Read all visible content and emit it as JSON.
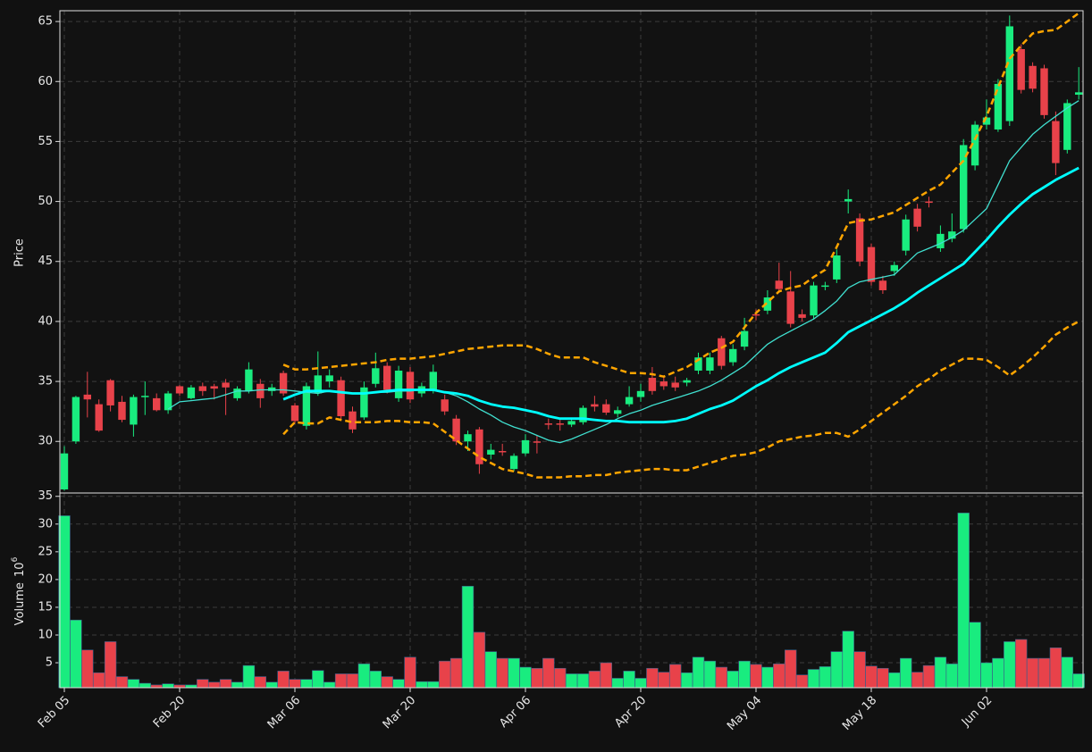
{
  "chart_data": [
    {
      "type": "candlestick",
      "ylabel": "Price",
      "up_color": "#19ec7f",
      "down_color": "#e8424a",
      "ylim": [
        25.7,
        65.9
      ],
      "yticks": [
        30,
        35,
        40,
        45,
        50,
        55,
        60,
        65
      ],
      "grid": true,
      "open": [
        26.0,
        30.0,
        33.9,
        33.1,
        35.1,
        33.3,
        31.4,
        33.7,
        33.6,
        32.6,
        34.6,
        33.6,
        34.6,
        34.6,
        34.9,
        33.6,
        34.2,
        34.8,
        34.2,
        35.7,
        33.0,
        31.3,
        34.0,
        35.0,
        35.1,
        32.5,
        32.0,
        34.8,
        36.3,
        33.6,
        35.8,
        34.0,
        34.2,
        33.5,
        31.9,
        30.0,
        31.0,
        28.9,
        29.2,
        27.7,
        29.0,
        30.0,
        31.5,
        31.5,
        31.4,
        31.6,
        33.1,
        33.1,
        32.3,
        33.1,
        33.7,
        35.3,
        35.0,
        34.9,
        34.9,
        35.9,
        35.9,
        38.6,
        36.6,
        37.9,
        40.6,
        40.9,
        43.4,
        42.5,
        40.6,
        40.5,
        42.9,
        43.5,
        50.0,
        48.6,
        46.2,
        43.4,
        44.2,
        45.9,
        49.4,
        50.0,
        46.1,
        46.9,
        47.7,
        53.0,
        56.4,
        56.0,
        56.7,
        62.7,
        61.3,
        61.1,
        56.7,
        54.3,
        58.9
      ],
      "high": [
        29.6,
        33.8,
        35.8,
        33.5,
        35.2,
        33.8,
        33.9,
        35.0,
        34.0,
        34.2,
        34.7,
        34.7,
        34.9,
        34.8,
        35.2,
        34.6,
        36.6,
        35.2,
        34.8,
        35.9,
        33.2,
        34.9,
        37.5,
        36.0,
        35.4,
        32.9,
        35.0,
        37.4,
        36.6,
        36.3,
        36.2,
        34.9,
        36.4,
        33.9,
        32.2,
        30.9,
        31.2,
        29.8,
        29.8,
        29.0,
        30.6,
        30.5,
        31.9,
        31.8,
        31.9,
        33.0,
        33.8,
        33.5,
        32.9,
        34.6,
        34.8,
        36.2,
        35.4,
        35.4,
        35.3,
        37.4,
        37.4,
        38.8,
        38.1,
        40.3,
        41.0,
        42.6,
        44.9,
        44.2,
        41.0,
        43.3,
        43.3,
        46.0,
        51.0,
        49.0,
        46.5,
        43.8,
        45.0,
        48.9,
        49.8,
        50.4,
        48.0,
        49.0,
        55.2,
        56.7,
        58.5,
        60.2,
        65.5,
        63.1,
        61.6,
        61.4,
        57.5,
        58.5,
        61.2
      ],
      "low": [
        25.9,
        29.8,
        32.0,
        30.8,
        32.5,
        31.6,
        30.4,
        32.2,
        32.5,
        32.3,
        33.8,
        33.5,
        33.8,
        33.5,
        32.2,
        33.4,
        34.0,
        32.8,
        33.8,
        33.8,
        31.5,
        31.0,
        33.8,
        34.5,
        31.8,
        30.7,
        31.8,
        34.5,
        34.0,
        33.3,
        33.2,
        33.7,
        34.0,
        32.2,
        29.7,
        29.2,
        27.3,
        28.5,
        28.8,
        27.5,
        28.8,
        29.0,
        31.0,
        30.9,
        31.2,
        31.4,
        32.5,
        32.2,
        32.0,
        32.9,
        33.3,
        33.9,
        34.3,
        34.2,
        34.6,
        35.6,
        35.6,
        36.0,
        36.3,
        37.6,
        40.1,
        40.6,
        42.4,
        39.5,
        40.0,
        40.2,
        42.6,
        43.2,
        49.0,
        44.6,
        43.0,
        42.3,
        43.8,
        45.5,
        47.5,
        49.5,
        45.8,
        46.6,
        47.4,
        52.6,
        56.0,
        55.8,
        56.3,
        59.0,
        59.1,
        56.9,
        52.2,
        54.0,
        58.5
      ],
      "close": [
        29.0,
        33.7,
        33.5,
        30.9,
        33.0,
        31.8,
        33.7,
        33.8,
        32.6,
        34.0,
        34.0,
        34.5,
        34.2,
        34.4,
        34.5,
        34.4,
        36.0,
        33.6,
        34.5,
        34.0,
        31.7,
        34.6,
        35.5,
        35.5,
        32.1,
        31.0,
        34.5,
        36.1,
        34.3,
        35.9,
        33.5,
        34.6,
        35.8,
        32.5,
        30.0,
        30.6,
        28.1,
        29.3,
        29.1,
        28.8,
        30.1,
        29.9,
        31.4,
        31.4,
        31.7,
        32.8,
        32.9,
        32.4,
        32.6,
        33.7,
        34.2,
        34.2,
        34.6,
        34.5,
        35.1,
        37.0,
        37.0,
        36.3,
        37.7,
        39.2,
        40.5,
        42.0,
        42.7,
        39.8,
        40.3,
        43.0,
        43.0,
        45.5,
        50.2,
        45.0,
        43.3,
        42.6,
        44.7,
        48.5,
        47.9,
        49.9,
        47.3,
        47.5,
        54.7,
        56.4,
        57.0,
        59.8,
        64.6,
        59.3,
        59.4,
        57.2,
        53.2,
        58.2,
        59.1
      ],
      "lines": [
        {
          "color": "#40e0d0",
          "width": 1.3,
          "dashed": false,
          "values": [
            null,
            null,
            null,
            null,
            null,
            null,
            null,
            null,
            null,
            32.7,
            33.3,
            33.4,
            33.5,
            33.6,
            33.9,
            34.2,
            34.2,
            34.3,
            34.3,
            34.3,
            34.2,
            34.1,
            34.0,
            34.2,
            34.1,
            34.0,
            34.0,
            34.1,
            34.1,
            34.2,
            34.2,
            34.3,
            34.3,
            34.1,
            33.8,
            33.3,
            32.7,
            32.2,
            31.6,
            31.2,
            30.9,
            30.5,
            30.1,
            29.9,
            30.2,
            30.6,
            31.0,
            31.4,
            31.9,
            32.3,
            32.6,
            33.0,
            33.3,
            33.6,
            33.9,
            34.2,
            34.6,
            35.1,
            35.7,
            36.3,
            37.2,
            38.1,
            38.7,
            39.2,
            39.7,
            40.2,
            40.9,
            41.7,
            42.8,
            43.3,
            43.5,
            43.7,
            43.9,
            44.8,
            45.7,
            46.1,
            46.5,
            47.0,
            47.6,
            48.5,
            49.4,
            51.4,
            53.4,
            54.5,
            55.6,
            56.4,
            57.1,
            57.8,
            58.4
          ]
        },
        {
          "color": "#00ffff",
          "width": 2.8,
          "dashed": false,
          "values": [
            null,
            null,
            null,
            null,
            null,
            null,
            null,
            null,
            null,
            null,
            null,
            null,
            null,
            null,
            null,
            null,
            null,
            null,
            null,
            33.5,
            33.9,
            34.2,
            34.2,
            34.2,
            34.1,
            34.0,
            34.0,
            34.1,
            34.2,
            34.3,
            34.3,
            34.3,
            34.3,
            34.1,
            34.0,
            33.8,
            33.4,
            33.1,
            32.9,
            32.8,
            32.6,
            32.4,
            32.1,
            31.9,
            31.9,
            31.9,
            31.8,
            31.7,
            31.7,
            31.6,
            31.6,
            31.6,
            31.6,
            31.7,
            31.9,
            32.3,
            32.7,
            33.0,
            33.4,
            34.0,
            34.6,
            35.1,
            35.7,
            36.2,
            36.6,
            37.0,
            37.4,
            38.2,
            39.1,
            39.6,
            40.1,
            40.6,
            41.1,
            41.7,
            42.4,
            43.0,
            43.6,
            44.2,
            44.8,
            45.8,
            46.8,
            47.9,
            48.9,
            49.8,
            50.6,
            51.2,
            51.8,
            52.3,
            52.8
          ]
        },
        {
          "color": "#ffa500",
          "width": 2.5,
          "dashed": true,
          "values": [
            null,
            null,
            null,
            null,
            null,
            null,
            null,
            null,
            null,
            null,
            null,
            null,
            null,
            null,
            null,
            null,
            null,
            null,
            null,
            36.4,
            36.0,
            36.0,
            36.1,
            36.2,
            36.3,
            36.4,
            36.5,
            36.6,
            36.8,
            36.9,
            36.9,
            37.0,
            37.1,
            37.3,
            37.5,
            37.7,
            37.8,
            37.9,
            38.0,
            38.0,
            38.0,
            37.7,
            37.3,
            37.0,
            37.0,
            37.0,
            36.6,
            36.3,
            36.0,
            35.7,
            35.7,
            35.6,
            35.4,
            35.8,
            36.2,
            36.8,
            37.4,
            37.8,
            38.3,
            39.5,
            40.7,
            41.6,
            42.5,
            42.8,
            43.0,
            43.7,
            44.3,
            46.2,
            48.2,
            48.4,
            48.5,
            48.8,
            49.1,
            49.7,
            50.3,
            50.9,
            51.4,
            52.4,
            53.4,
            55.2,
            57.1,
            59.5,
            61.9,
            63.0,
            64.0,
            64.2,
            64.3,
            65.0,
            65.7
          ]
        },
        {
          "color": "#ffa500",
          "width": 2.5,
          "dashed": true,
          "values": [
            null,
            null,
            null,
            null,
            null,
            null,
            null,
            null,
            null,
            null,
            null,
            null,
            null,
            null,
            null,
            null,
            null,
            null,
            null,
            30.6,
            31.6,
            31.5,
            31.5,
            32.0,
            31.8,
            31.6,
            31.6,
            31.6,
            31.7,
            31.7,
            31.6,
            31.6,
            31.5,
            30.8,
            30.1,
            29.4,
            28.7,
            28.2,
            27.7,
            27.5,
            27.3,
            27.0,
            27.0,
            27.0,
            27.1,
            27.1,
            27.2,
            27.2,
            27.4,
            27.5,
            27.6,
            27.7,
            27.7,
            27.6,
            27.6,
            27.9,
            28.2,
            28.5,
            28.8,
            28.9,
            29.1,
            29.5,
            30.0,
            30.2,
            30.4,
            30.5,
            30.7,
            30.7,
            30.4,
            31.0,
            31.7,
            32.4,
            33.1,
            33.8,
            34.6,
            35.2,
            35.9,
            36.4,
            36.9,
            36.9,
            36.8,
            36.2,
            35.5,
            36.2,
            37.0,
            37.9,
            38.9,
            39.5,
            40.0
          ]
        }
      ]
    },
    {
      "type": "bar",
      "ylabel": "Volume",
      "ylabel_base": "10",
      "ylabel_exponent": "6",
      "ylim": [
        0.5,
        35.6
      ],
      "yticks": [
        5,
        10,
        15,
        20,
        25,
        30,
        35
      ],
      "grid": true,
      "categories": [
        "Feb 05",
        null,
        null,
        null,
        null,
        null,
        null,
        null,
        null,
        null,
        "Feb 20",
        null,
        null,
        null,
        null,
        null,
        null,
        null,
        null,
        null,
        "Mar 06",
        null,
        null,
        null,
        null,
        null,
        null,
        null,
        null,
        null,
        "Mar 20",
        null,
        null,
        null,
        null,
        null,
        null,
        null,
        null,
        null,
        "Apr 06",
        null,
        null,
        null,
        null,
        null,
        null,
        null,
        null,
        null,
        "Apr 20",
        null,
        null,
        null,
        null,
        null,
        null,
        null,
        null,
        null,
        "May 04",
        null,
        null,
        null,
        null,
        null,
        null,
        null,
        null,
        null,
        "May 18",
        null,
        null,
        null,
        null,
        null,
        null,
        null,
        null,
        null,
        "Jun 02",
        null,
        null,
        null,
        null,
        null,
        null,
        null,
        null
      ],
      "values": [
        31.5,
        12.7,
        7.3,
        3.2,
        8.8,
        2.5,
        2.0,
        1.3,
        1.0,
        1.2,
        1.0,
        1.0,
        2.0,
        1.5,
        2.0,
        1.5,
        4.5,
        2.5,
        1.5,
        3.5,
        2.0,
        2.0,
        3.6,
        1.5,
        3.0,
        3.0,
        4.8,
        3.5,
        2.5,
        2.0,
        6.0,
        1.6,
        1.6,
        5.3,
        5.8,
        18.8,
        10.5,
        7.0,
        5.8,
        5.8,
        4.2,
        4.0,
        5.8,
        4.0,
        3.0,
        3.0,
        3.5,
        5.0,
        2.2,
        3.5,
        2.2,
        4.0,
        3.3,
        4.7,
        3.2,
        6.0,
        5.3,
        4.2,
        3.5,
        5.3,
        4.7,
        4.2,
        4.8,
        7.3,
        2.8,
        3.8,
        4.3,
        7.0,
        10.7,
        7.0,
        4.4,
        4.0,
        3.2,
        5.8,
        3.3,
        4.5,
        6.0,
        4.8,
        32.0,
        12.3,
        5.0,
        5.8,
        8.8,
        9.2,
        5.8,
        5.8,
        7.7,
        6.0,
        3.0
      ]
    }
  ]
}
